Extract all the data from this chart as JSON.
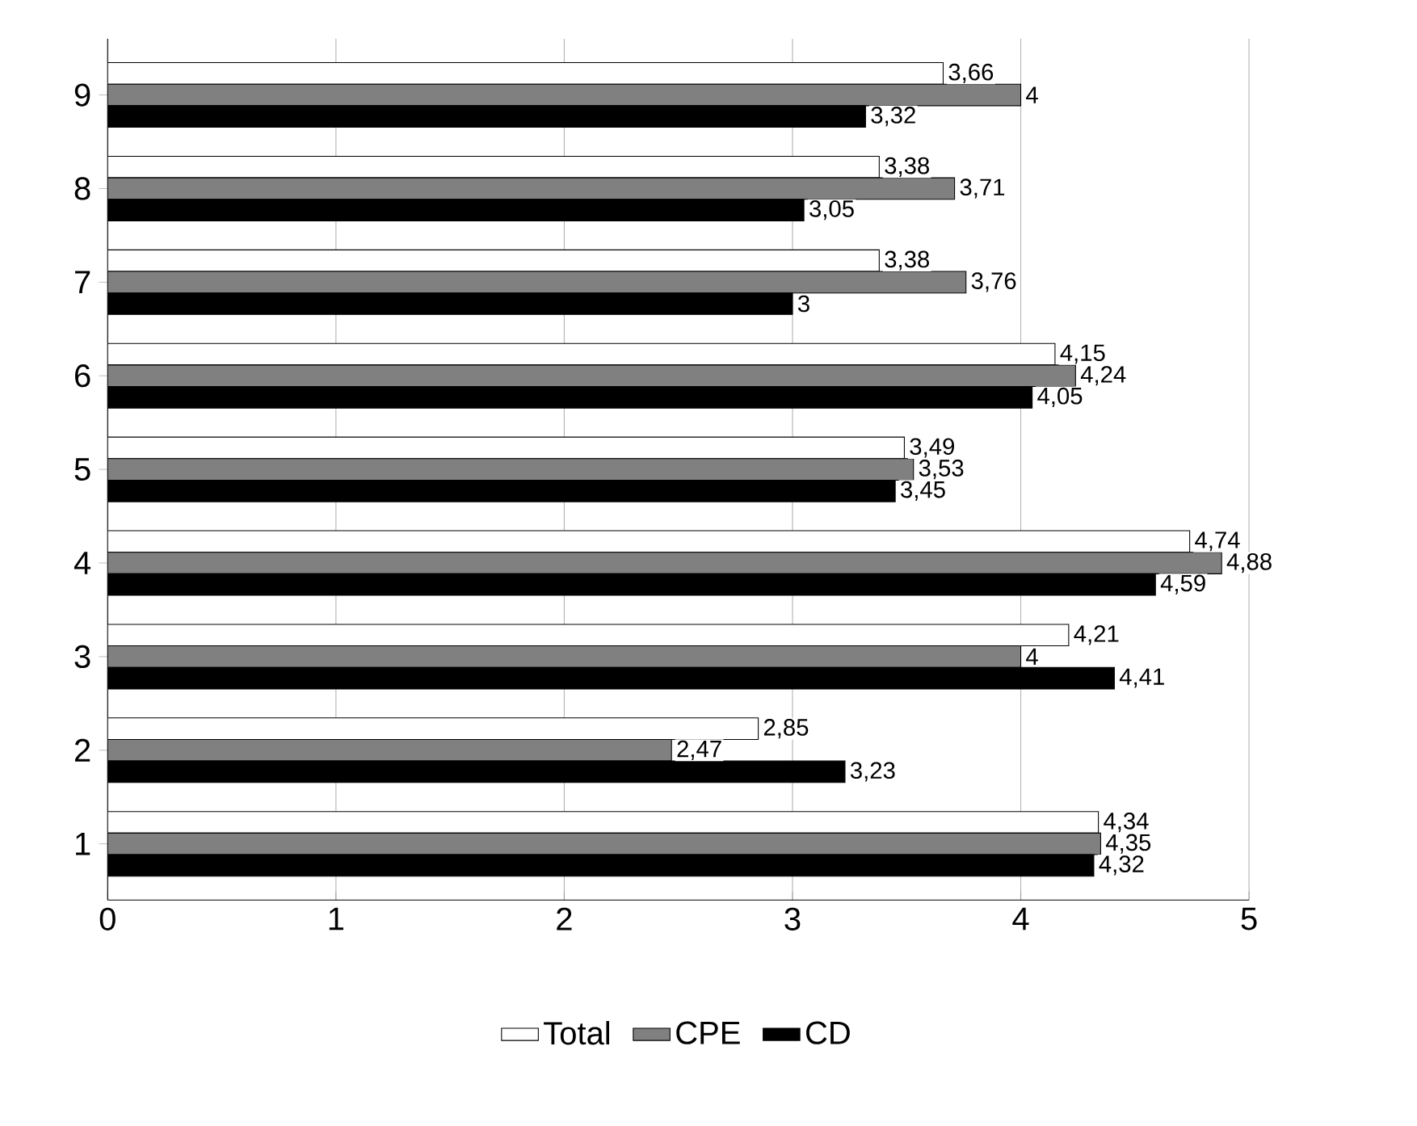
{
  "chart_data": {
    "type": "bar",
    "orientation": "horizontal",
    "categories": [
      "9",
      "8",
      "7",
      "6",
      "5",
      "4",
      "3",
      "2",
      "1"
    ],
    "series": [
      {
        "name": "Total",
        "color": "#ffffff",
        "values": [
          3.66,
          3.38,
          3.38,
          4.15,
          3.49,
          4.74,
          4.21,
          2.85,
          4.34
        ],
        "value_labels": [
          "3,66",
          "3,38",
          "3,38",
          "4,15",
          "3,49",
          "4,74",
          "4,21",
          "2,85",
          "4,34"
        ]
      },
      {
        "name": "CPE",
        "color": "#808080",
        "values": [
          4,
          3.71,
          3.76,
          4.24,
          3.53,
          4.88,
          4,
          2.47,
          4.35
        ],
        "value_labels": [
          "4",
          "3,71",
          "3,76",
          "4,24",
          "3,53",
          "4,88",
          "4",
          "2,47",
          "4,35"
        ]
      },
      {
        "name": "CD",
        "color": "#000000",
        "values": [
          3.32,
          3.05,
          3,
          4.05,
          3.45,
          4.59,
          4.41,
          3.23,
          4.32
        ],
        "value_labels": [
          "3,32",
          "3,05",
          "3",
          "4,05",
          "3,45",
          "4,59",
          "4,41",
          "3,23",
          "4,32"
        ]
      }
    ],
    "xlim": [
      0,
      5
    ],
    "xticks": [
      0,
      1,
      2,
      3,
      4,
      5
    ],
    "grid": "x",
    "legend": "bottom"
  }
}
